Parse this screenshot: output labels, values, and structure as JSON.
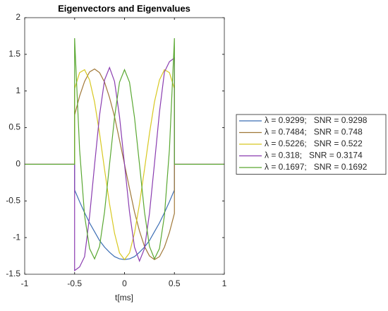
{
  "chart_data": {
    "type": "line",
    "title": "Eigenvectors and Eigenvalues",
    "xlabel": "t[ms]",
    "x": [
      -1,
      -0.5,
      -0.5,
      -0.45,
      -0.4,
      -0.35,
      -0.3,
      -0.25,
      -0.2,
      -0.15,
      -0.1,
      -0.05,
      0,
      0.05,
      0.1,
      0.15,
      0.2,
      0.25,
      0.3,
      0.35,
      0.4,
      0.45,
      0.5,
      0.5,
      1
    ],
    "xlim": [
      -1,
      1
    ],
    "xticks": [
      -1,
      -0.5,
      0,
      0.5,
      1
    ],
    "ylim": [
      -1.5,
      2
    ],
    "yticks": [
      -1.5,
      -1,
      -0.5,
      0,
      0.5,
      1,
      1.5,
      2
    ],
    "grid": false,
    "legend": "outside-right",
    "series": [
      {
        "name": "λ = 0.9299;   SNR = 0.9298",
        "color": "#3c6eb4",
        "values": [
          0,
          0,
          -0.35,
          -0.51,
          -0.66,
          -0.8,
          -0.92,
          -1.04,
          -1.13,
          -1.2,
          -1.26,
          -1.29,
          -1.3,
          -1.29,
          -1.26,
          -1.2,
          -1.13,
          -1.04,
          -0.92,
          -0.8,
          -0.66,
          -0.51,
          -0.35,
          0,
          0
        ]
      },
      {
        "name": "λ = 0.7484;   SNR = 0.748",
        "color": "#a07838",
        "values": [
          0,
          0,
          0.67,
          0.93,
          1.13,
          1.26,
          1.3,
          1.25,
          1.12,
          0.91,
          0.65,
          0.33,
          0,
          -0.33,
          -0.65,
          -0.91,
          -1.12,
          -1.25,
          -1.3,
          -1.26,
          -1.13,
          -0.93,
          -0.67,
          0,
          0
        ]
      },
      {
        "name": "λ = 0.5226;   SNR = 0.522",
        "color": "#d8c820",
        "values": [
          0,
          0,
          1.03,
          1.25,
          1.29,
          1.15,
          0.85,
          0.42,
          -0.07,
          -0.54,
          -0.94,
          -1.21,
          -1.3,
          -1.21,
          -0.94,
          -0.54,
          -0.07,
          0.42,
          0.85,
          1.15,
          1.29,
          1.25,
          1.03,
          0,
          0
        ]
      },
      {
        "name": "λ = 0.318;   SNR = 0.3174",
        "color": "#8a3cb0",
        "values": [
          0,
          0,
          -1.45,
          -1.4,
          -1.26,
          -0.71,
          -0.01,
          0.67,
          1.15,
          1.32,
          1.13,
          0.65,
          0,
          -0.65,
          -1.13,
          -1.32,
          -1.15,
          -0.67,
          0.01,
          0.71,
          1.26,
          1.4,
          1.45,
          0,
          0
        ]
      },
      {
        "name": "λ = 0.1697;   SNR = 0.1692",
        "color": "#5aa832",
        "values": [
          0,
          0,
          1.72,
          0.2,
          -0.7,
          -1.15,
          -1.29,
          -1.12,
          -0.65,
          0,
          0.64,
          1.12,
          1.29,
          1.12,
          0.64,
          0,
          -0.65,
          -1.12,
          -1.29,
          -1.15,
          -0.7,
          0.2,
          1.72,
          0,
          0
        ]
      }
    ]
  }
}
